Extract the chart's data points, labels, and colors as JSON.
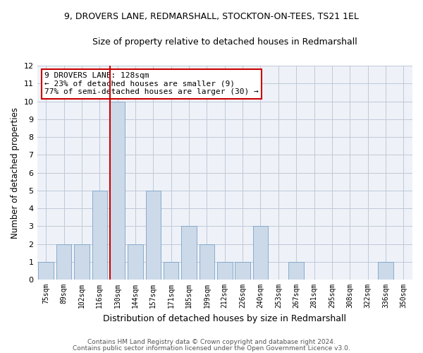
{
  "title1": "9, DROVERS LANE, REDMARSHALL, STOCKTON-ON-TEES, TS21 1EL",
  "title2": "Size of property relative to detached houses in Redmarshall",
  "xlabel": "Distribution of detached houses by size in Redmarshall",
  "ylabel": "Number of detached properties",
  "categories": [
    "75sqm",
    "89sqm",
    "102sqm",
    "116sqm",
    "130sqm",
    "144sqm",
    "157sqm",
    "171sqm",
    "185sqm",
    "199sqm",
    "212sqm",
    "226sqm",
    "240sqm",
    "253sqm",
    "267sqm",
    "281sqm",
    "295sqm",
    "308sqm",
    "322sqm",
    "336sqm",
    "350sqm"
  ],
  "values": [
    1,
    2,
    2,
    5,
    10,
    2,
    5,
    1,
    3,
    2,
    1,
    1,
    3,
    0,
    1,
    0,
    0,
    0,
    0,
    1,
    0
  ],
  "bar_color": "#ccd9e8",
  "bar_edge_color": "#7aa3c8",
  "highlight_index": 4,
  "highlight_line_color": "#cc0000",
  "ylim": [
    0,
    12
  ],
  "yticks": [
    0,
    1,
    2,
    3,
    4,
    5,
    6,
    7,
    8,
    9,
    10,
    11,
    12
  ],
  "annotation_text": "9 DROVERS LANE: 128sqm\n← 23% of detached houses are smaller (9)\n77% of semi-detached houses are larger (30) →",
  "annotation_box_color": "#cc0000",
  "footer1": "Contains HM Land Registry data © Crown copyright and database right 2024.",
  "footer2": "Contains public sector information licensed under the Open Government Licence v3.0.",
  "grid_color": "#c0c8d8",
  "bg_color": "#eef2f8"
}
